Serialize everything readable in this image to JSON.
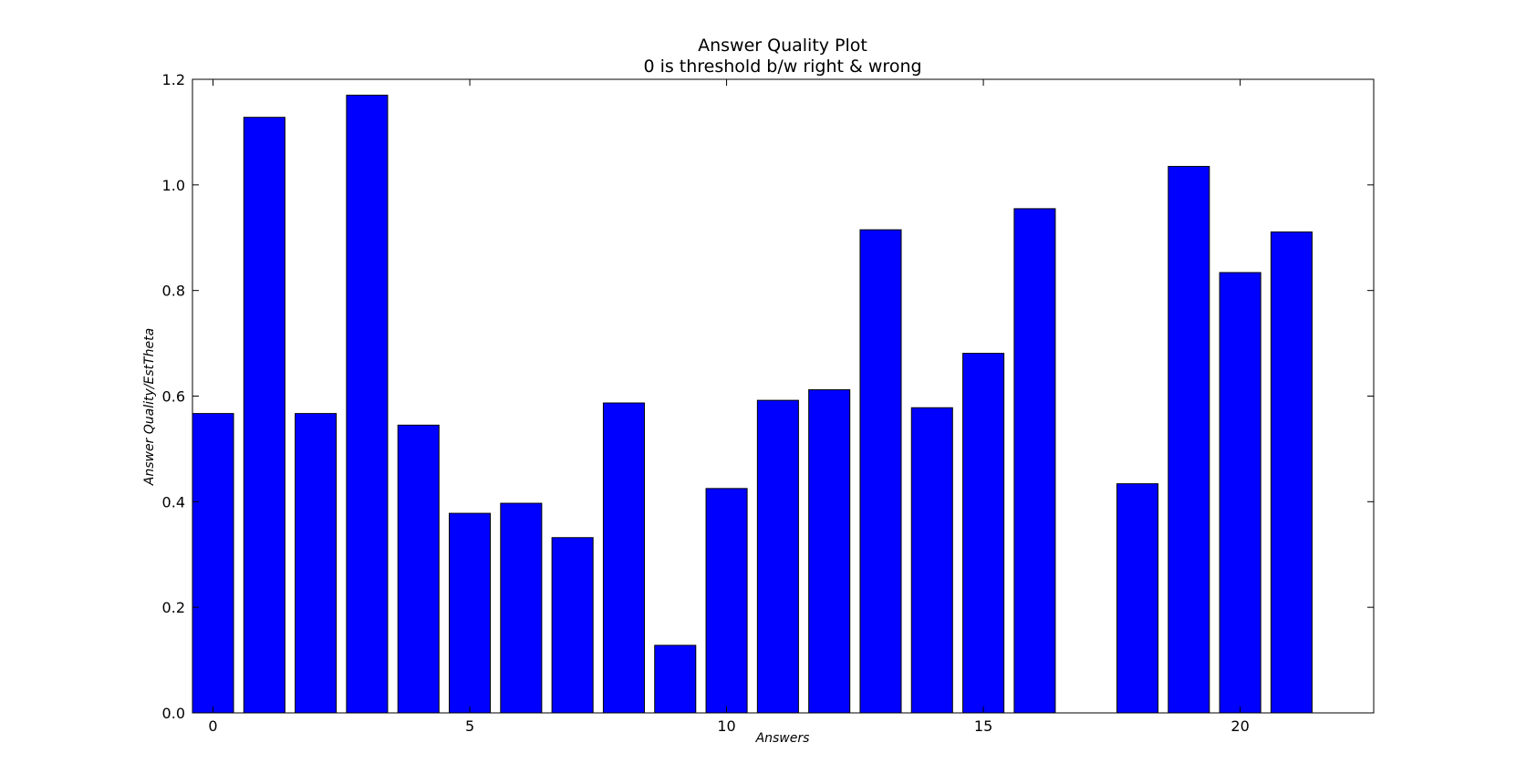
{
  "chart_data": {
    "type": "bar",
    "title": "Answer Quality Plot",
    "subtitle": "0 is threshold b/w right & wrong",
    "xlabel": "Answers",
    "ylabel": "Answer Quality/EstTheta",
    "x": [
      0,
      1,
      2,
      3,
      4,
      5,
      6,
      7,
      8,
      9,
      10,
      11,
      12,
      13,
      14,
      15,
      16,
      17,
      18,
      19,
      20,
      21
    ],
    "values": [
      0.567,
      1.128,
      0.567,
      1.17,
      0.545,
      0.378,
      0.397,
      0.332,
      0.587,
      0.128,
      0.425,
      0.592,
      0.612,
      0.915,
      0.578,
      0.681,
      0.955,
      0.0,
      0.434,
      1.035,
      0.834,
      0.911
    ],
    "bar_width": 0.8,
    "xlim": [
      -0.4,
      22.6
    ],
    "ylim": [
      0,
      1.2
    ],
    "xticks": [
      0,
      5,
      10,
      15,
      20
    ],
    "xtick_labels": [
      "0",
      "5",
      "10",
      "15",
      "20"
    ],
    "yticks": [
      0.0,
      0.2,
      0.4,
      0.6,
      0.8,
      1.0,
      1.2
    ],
    "ytick_labels": [
      "0.0",
      "0.2",
      "0.4",
      "0.6",
      "0.8",
      "1.0",
      "1.2"
    ],
    "bar_color": "#0000ff",
    "edge_color": "#000000",
    "grid": false,
    "legend": "none"
  }
}
